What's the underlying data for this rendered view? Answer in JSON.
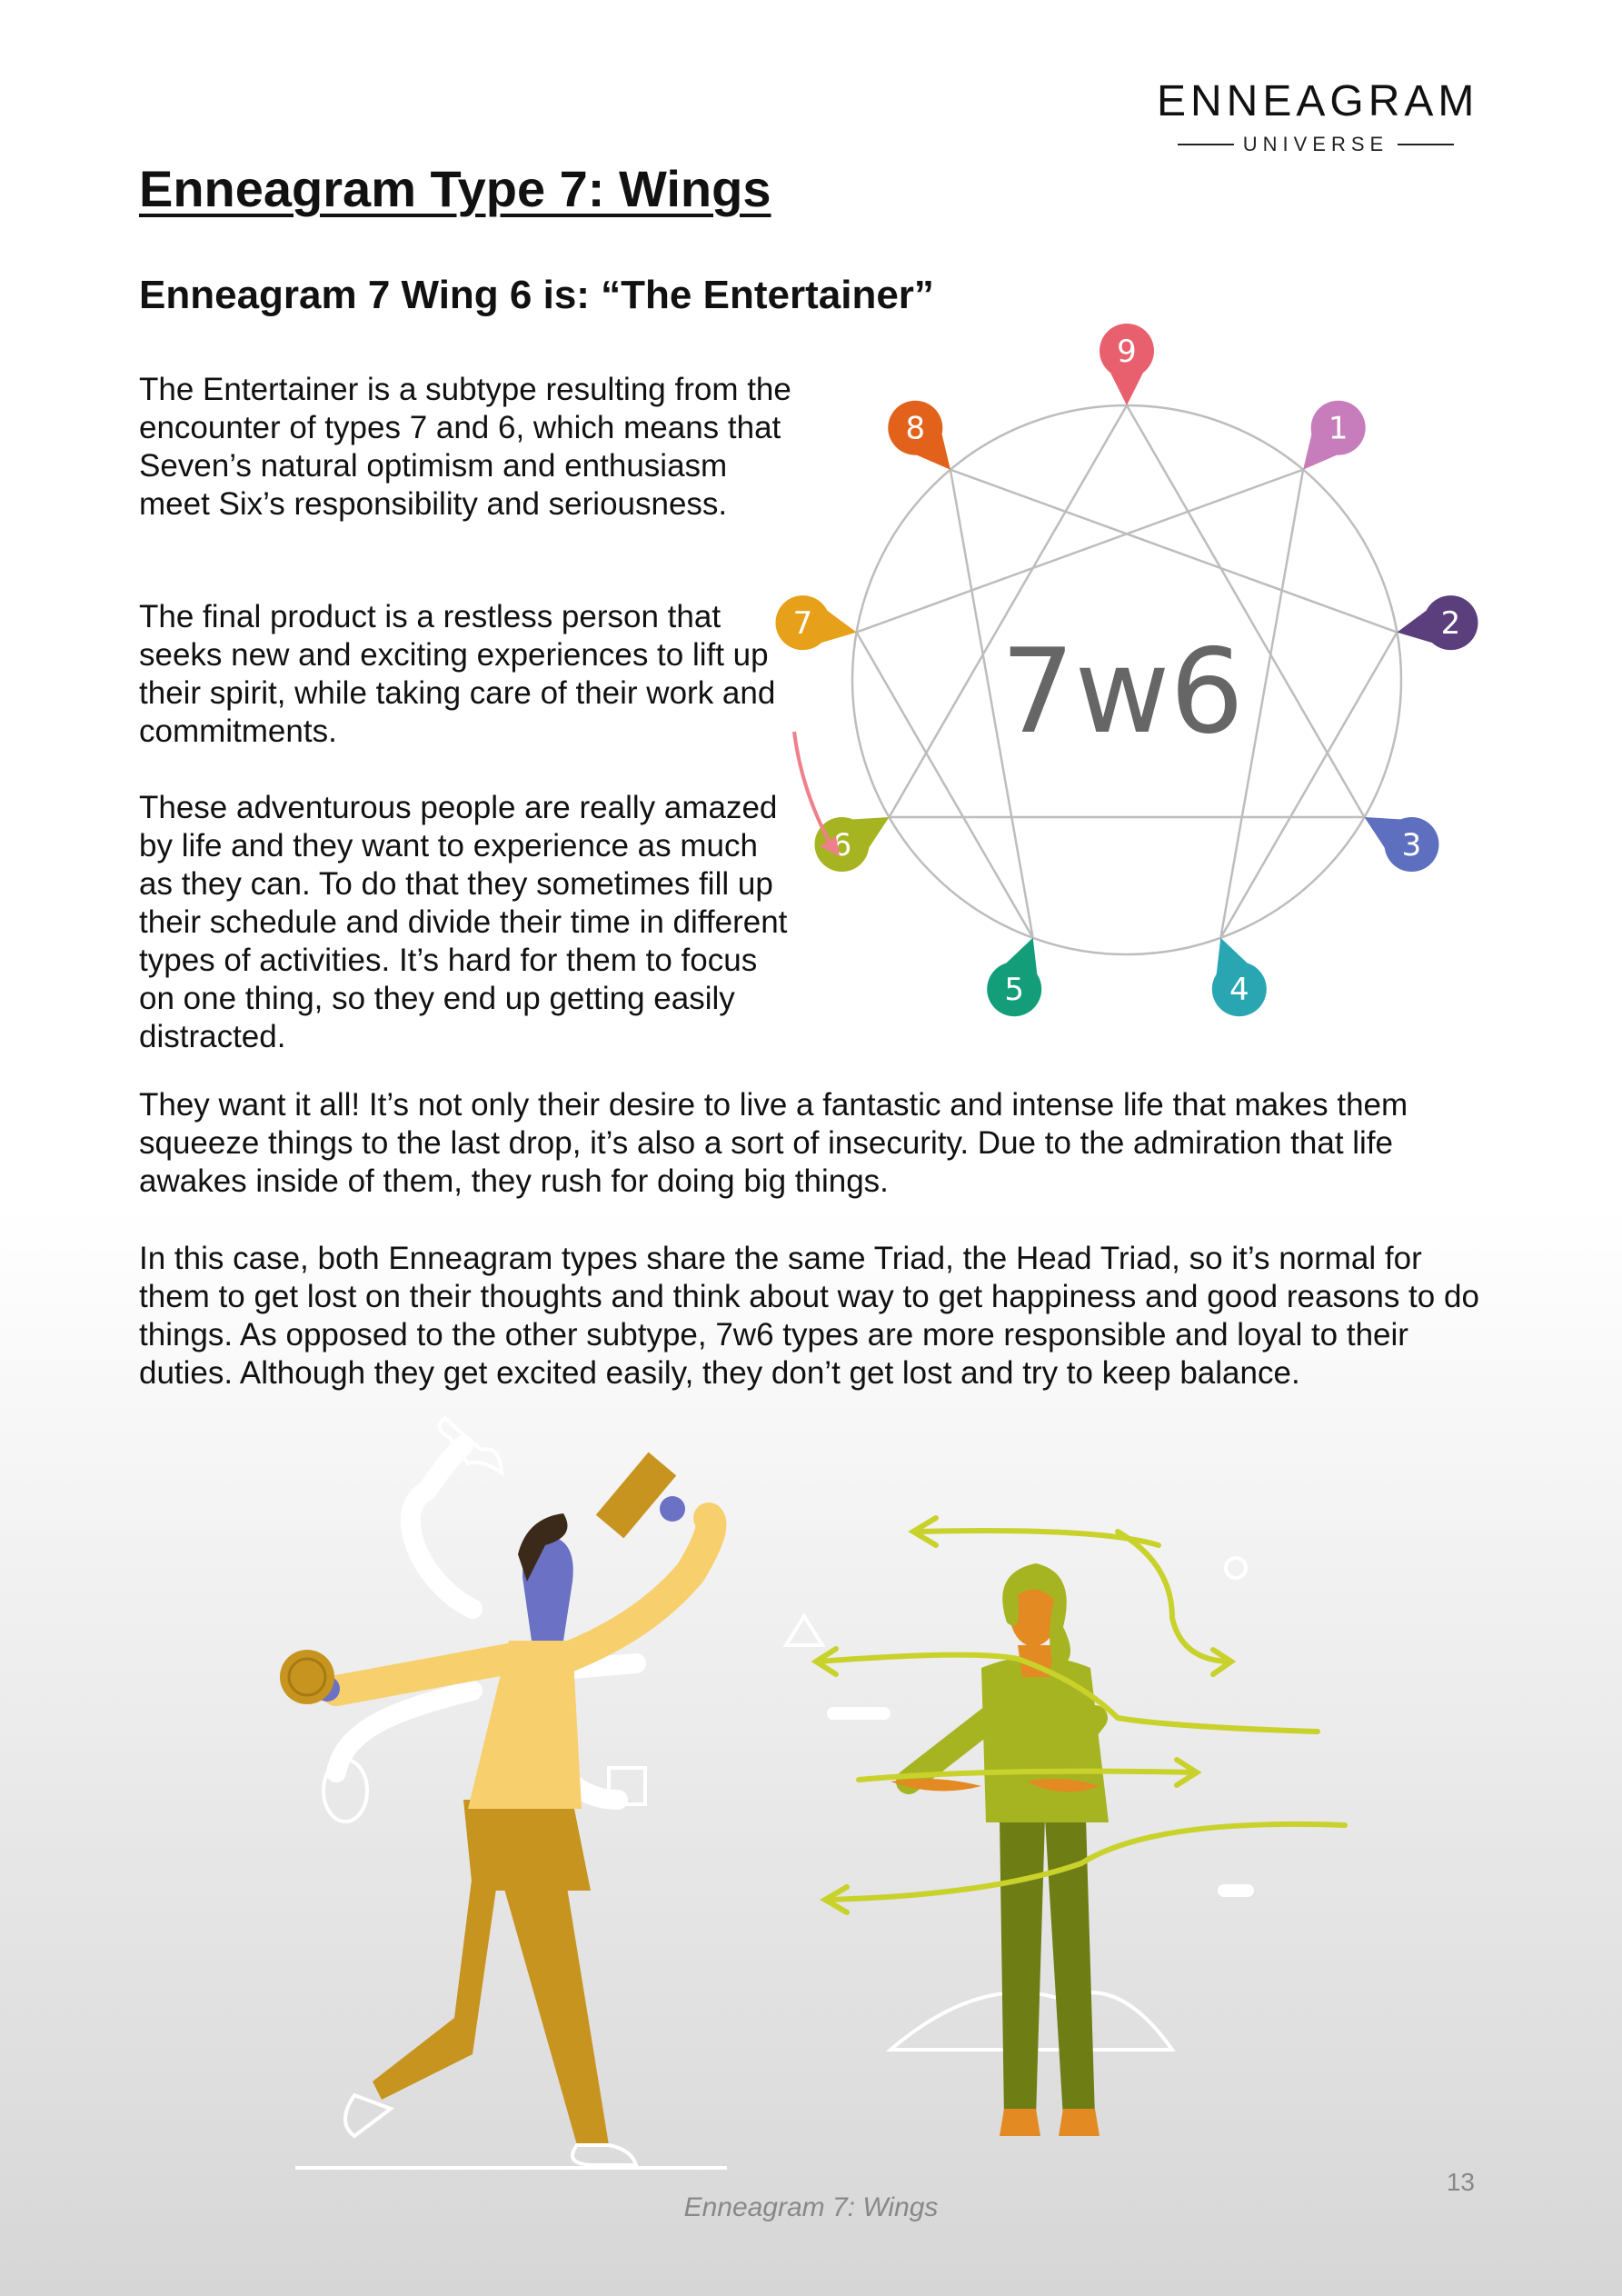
{
  "brand": {
    "name": "ENNEAGRAM",
    "sub": "UNIVERSE"
  },
  "title": "Enneagram Type 7: Wings",
  "subtitle": "Enneagram 7 Wing 6 is: “The Entertainer”",
  "paragraphs": [
    "The Entertainer is a subtype resulting from the encounter of types 7 and 6, which means that Seven’s natural optimism and enthusiasm meet Six’s responsibility and seriousness.",
    "The final product is a restless person that seeks new and exciting experiences to lift up their spirit, while taking care of their work and commitments.",
    "These adventurous people are really amazed by life and they want to experience as much as they can. To do that they sometimes fill up their schedule and divide their time in different types of activities. It’s hard for them to focus on one thing, so they end up getting easily distracted.",
    "They want it all! It’s not only their desire to live a fantastic and intense life that makes them squeeze things to the last drop, it’s also a sort of insecurity. Due to the admiration that life awakes inside of them, they rush for doing big things.",
    "In this case, both Enneagram types share the same Triad, the Head Triad, so it’s normal for them to get lost on their thoughts and think about way to get happiness and good reasons to do things. As opposed to the other subtype, 7w6 types are more responsible and loyal to their duties. Although they get excited easily, they don’t get lost and try to keep balance."
  ],
  "diagram": {
    "center_label": "7w6",
    "points": [
      {
        "num": "9",
        "color": "#e8606e"
      },
      {
        "num": "1",
        "color": "#c77dbb"
      },
      {
        "num": "2",
        "color": "#5a3f7c"
      },
      {
        "num": "3",
        "color": "#5e6fc0"
      },
      {
        "num": "4",
        "color": "#2aa6b3"
      },
      {
        "num": "5",
        "color": "#139e79"
      },
      {
        "num": "6",
        "color": "#a6b421"
      },
      {
        "num": "7",
        "color": "#e6a019"
      },
      {
        "num": "8",
        "color": "#e2621c"
      }
    ],
    "arrow_color": "#f07f8c",
    "line_color": "#bdbdbd"
  },
  "illustration": {
    "name": "two-people-illustration"
  },
  "caption": "Enneagram 7: Wings",
  "page_number": "13"
}
